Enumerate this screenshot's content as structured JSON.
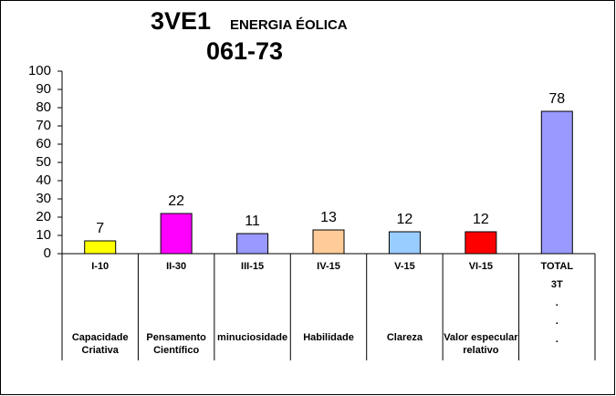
{
  "chart_data": {
    "type": "bar",
    "title": "3VE1",
    "subtitle": "ENERGIA ÉOLICA",
    "code": "061-73",
    "categories": [
      "I-10",
      "II-30",
      "III-15",
      "IV-15",
      "V-15",
      "VI-15",
      "TOTAL"
    ],
    "descriptions": [
      [
        "Capacidade",
        "Criativa"
      ],
      [
        "Pensamento",
        "Científico"
      ],
      [
        "minuciosidade"
      ],
      [
        "Habilidade"
      ],
      [
        "Clareza"
      ],
      [
        "Valor especular",
        "relativo"
      ],
      null
    ],
    "total_notes": [
      "3T",
      ".",
      ".",
      "."
    ],
    "values": [
      7,
      22,
      11,
      13,
      12,
      12,
      78
    ],
    "colors": [
      "#ffff00",
      "#ff00ff",
      "#9999ff",
      "#ffcc99",
      "#99ccff",
      "#ff0000",
      "#9999ff"
    ],
    "ylim": [
      0,
      100
    ],
    "yticks": [
      0,
      10,
      20,
      30,
      40,
      50,
      60,
      70,
      80,
      90,
      100
    ]
  }
}
